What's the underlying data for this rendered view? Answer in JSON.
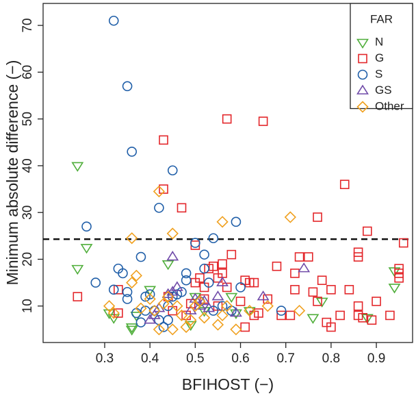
{
  "chart_data": {
    "type": "scatter",
    "x_label": "BFIHOST (−)",
    "y_label": "Minimum absolute difference (−)",
    "xlim": [
      0.164,
      0.98
    ],
    "ylim": [
      2.2,
      74.7
    ],
    "xticks": [
      0.3,
      0.4,
      0.5,
      0.6,
      0.7,
      0.8,
      0.9
    ],
    "yticks": [
      10,
      20,
      30,
      40,
      50,
      60,
      70
    ],
    "reference_line": 24.3,
    "legend_title": "FAR",
    "legend_position": "top-right",
    "series": [
      {
        "name": "N",
        "color": "#4fae3a",
        "marker": "triangle-down",
        "x": [
          0.24,
          0.24,
          0.26,
          0.31,
          0.32,
          0.36,
          0.37,
          0.4,
          0.44,
          0.49,
          0.5,
          0.52,
          0.58,
          0.59,
          0.62,
          0.76,
          0.78,
          0.88,
          0.94,
          0.94,
          0.36
        ],
        "y": [
          40,
          18,
          22.5,
          8.5,
          7.5,
          5,
          8,
          13.5,
          19,
          6,
          12,
          9,
          12,
          8.5,
          9,
          7.5,
          11,
          7.5,
          17.5,
          14,
          5.5
        ]
      },
      {
        "name": "G",
        "color": "#e3262a",
        "marker": "square",
        "x": [
          0.24,
          0.33,
          0.33,
          0.43,
          0.43,
          0.47,
          0.44,
          0.45,
          0.48,
          0.49,
          0.5,
          0.5,
          0.51,
          0.52,
          0.53,
          0.54,
          0.55,
          0.56,
          0.56,
          0.57,
          0.57,
          0.58,
          0.6,
          0.61,
          0.62,
          0.63,
          0.63,
          0.64,
          0.65,
          0.66,
          0.68,
          0.69,
          0.71,
          0.72,
          0.72,
          0.73,
          0.75,
          0.76,
          0.77,
          0.77,
          0.78,
          0.79,
          0.8,
          0.8,
          0.82,
          0.83,
          0.84,
          0.86,
          0.86,
          0.86,
          0.86,
          0.87,
          0.88,
          0.89,
          0.9,
          0.93,
          0.95,
          0.95,
          0.95,
          0.96,
          0.61,
          0.55,
          0.52
        ],
        "y": [
          12,
          8.5,
          13.5,
          45.5,
          35,
          31,
          12,
          9,
          8,
          10.5,
          23,
          15,
          16,
          14,
          18,
          18.5,
          16,
          19,
          17,
          50,
          14,
          21,
          11,
          15.5,
          15,
          15,
          8,
          8.5,
          49.5,
          11.5,
          18.5,
          8,
          8,
          13.5,
          17,
          20.5,
          20.5,
          13,
          29,
          11,
          15.5,
          6.5,
          13.5,
          5.5,
          8,
          36,
          13.5,
          21.5,
          20.5,
          10,
          8,
          7.5,
          26,
          7,
          11,
          8,
          16,
          17,
          18,
          23.5,
          5.5,
          10,
          11.5
        ]
      },
      {
        "name": "S",
        "color": "#1f5ea8",
        "marker": "circle",
        "x": [
          0.32,
          0.35,
          0.36,
          0.45,
          0.42,
          0.59,
          0.26,
          0.54,
          0.5,
          0.38,
          0.28,
          0.33,
          0.34,
          0.35,
          0.35,
          0.32,
          0.39,
          0.4,
          0.41,
          0.42,
          0.43,
          0.44,
          0.45,
          0.46,
          0.47,
          0.48,
          0.48,
          0.51,
          0.52,
          0.52,
          0.53,
          0.54,
          0.56,
          0.58,
          0.6,
          0.69,
          0.44,
          0.39,
          0.37,
          0.38
        ],
        "y": [
          71,
          57,
          43,
          39,
          31,
          28,
          27,
          24.5,
          23.5,
          20.5,
          15,
          18,
          17,
          13,
          11.5,
          13.5,
          12,
          12.5,
          9,
          7,
          5.5,
          7,
          12,
          12.5,
          13,
          17,
          15.5,
          11,
          21,
          18,
          15,
          9,
          10,
          9,
          14,
          9,
          10,
          9,
          8.5,
          6.5
        ]
      },
      {
        "name": "GS",
        "color": "#6f4aa8",
        "marker": "triangle-up",
        "x": [
          0.45,
          0.4,
          0.41,
          0.42,
          0.44,
          0.45,
          0.46,
          0.5,
          0.51,
          0.52,
          0.53,
          0.55,
          0.56,
          0.59,
          0.65,
          0.74,
          0.49
        ],
        "y": [
          20.5,
          7,
          8,
          9.5,
          12.5,
          13,
          14,
          11.5,
          10,
          11,
          9.5,
          12,
          15,
          8.5,
          12,
          18,
          9
        ]
      },
      {
        "name": "Other",
        "color": "#f0a01e",
        "marker": "diamond",
        "x": [
          0.42,
          0.45,
          0.56,
          0.71,
          0.36,
          0.31,
          0.32,
          0.36,
          0.37,
          0.38,
          0.4,
          0.41,
          0.42,
          0.43,
          0.44,
          0.45,
          0.46,
          0.47,
          0.48,
          0.49,
          0.5,
          0.51,
          0.52,
          0.55,
          0.56,
          0.57,
          0.59,
          0.62,
          0.66,
          0.73
        ],
        "y": [
          34.5,
          25.5,
          28,
          29,
          24.5,
          10,
          8.5,
          15,
          16.5,
          9.5,
          11.5,
          9,
          5,
          10.5,
          12,
          5,
          10,
          8,
          5.5,
          7,
          10,
          11,
          7.5,
          6,
          8,
          10,
          5,
          9,
          10,
          9
        ]
      }
    ]
  }
}
